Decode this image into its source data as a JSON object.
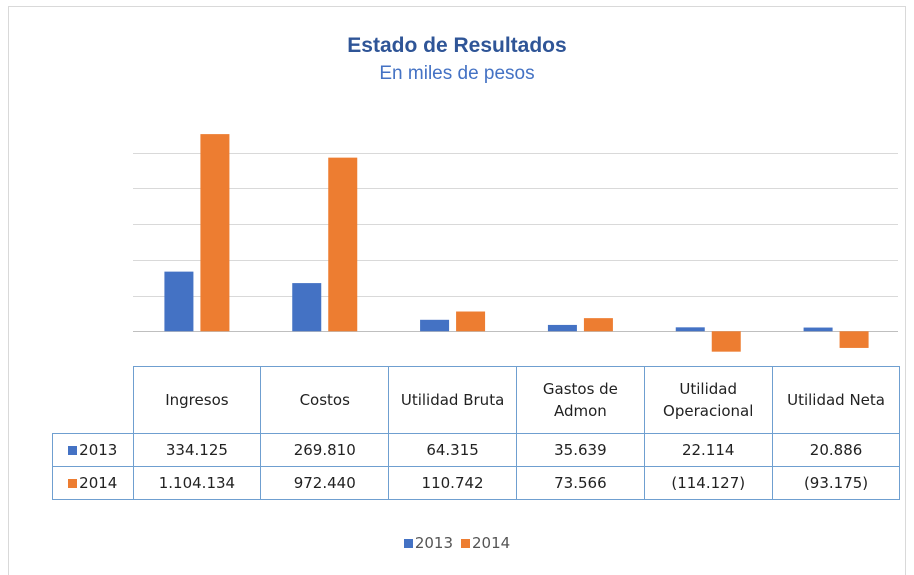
{
  "chart_data": {
    "type": "bar",
    "title": "Estado de Resultados",
    "subtitle": "En miles de pesos",
    "categories": [
      "Ingresos",
      "Costos",
      "Utilidad Bruta",
      "Gastos de Admon",
      "Utilidad Operacional",
      "Utilidad Neta"
    ],
    "series": [
      {
        "name": "2013",
        "color": "#4472c4",
        "values": [
          334125,
          269810,
          64315,
          35639,
          22114,
          20886
        ],
        "value_labels": [
          "334.125",
          "269.810",
          "64.315",
          "35.639",
          "22.114",
          "20.886"
        ]
      },
      {
        "name": "2014",
        "color": "#ed7d31",
        "values": [
          1104134,
          972440,
          110742,
          73566,
          -114127,
          -93175
        ],
        "value_labels": [
          "1.104.134",
          "972.440",
          "110.742",
          "73.566",
          "(114.127)",
          "(93.175)"
        ]
      }
    ],
    "ylim": [
      -200000,
      1200000
    ],
    "yticks": [
      0,
      200000,
      400000,
      600000,
      800000,
      1000000
    ],
    "grid": true
  }
}
